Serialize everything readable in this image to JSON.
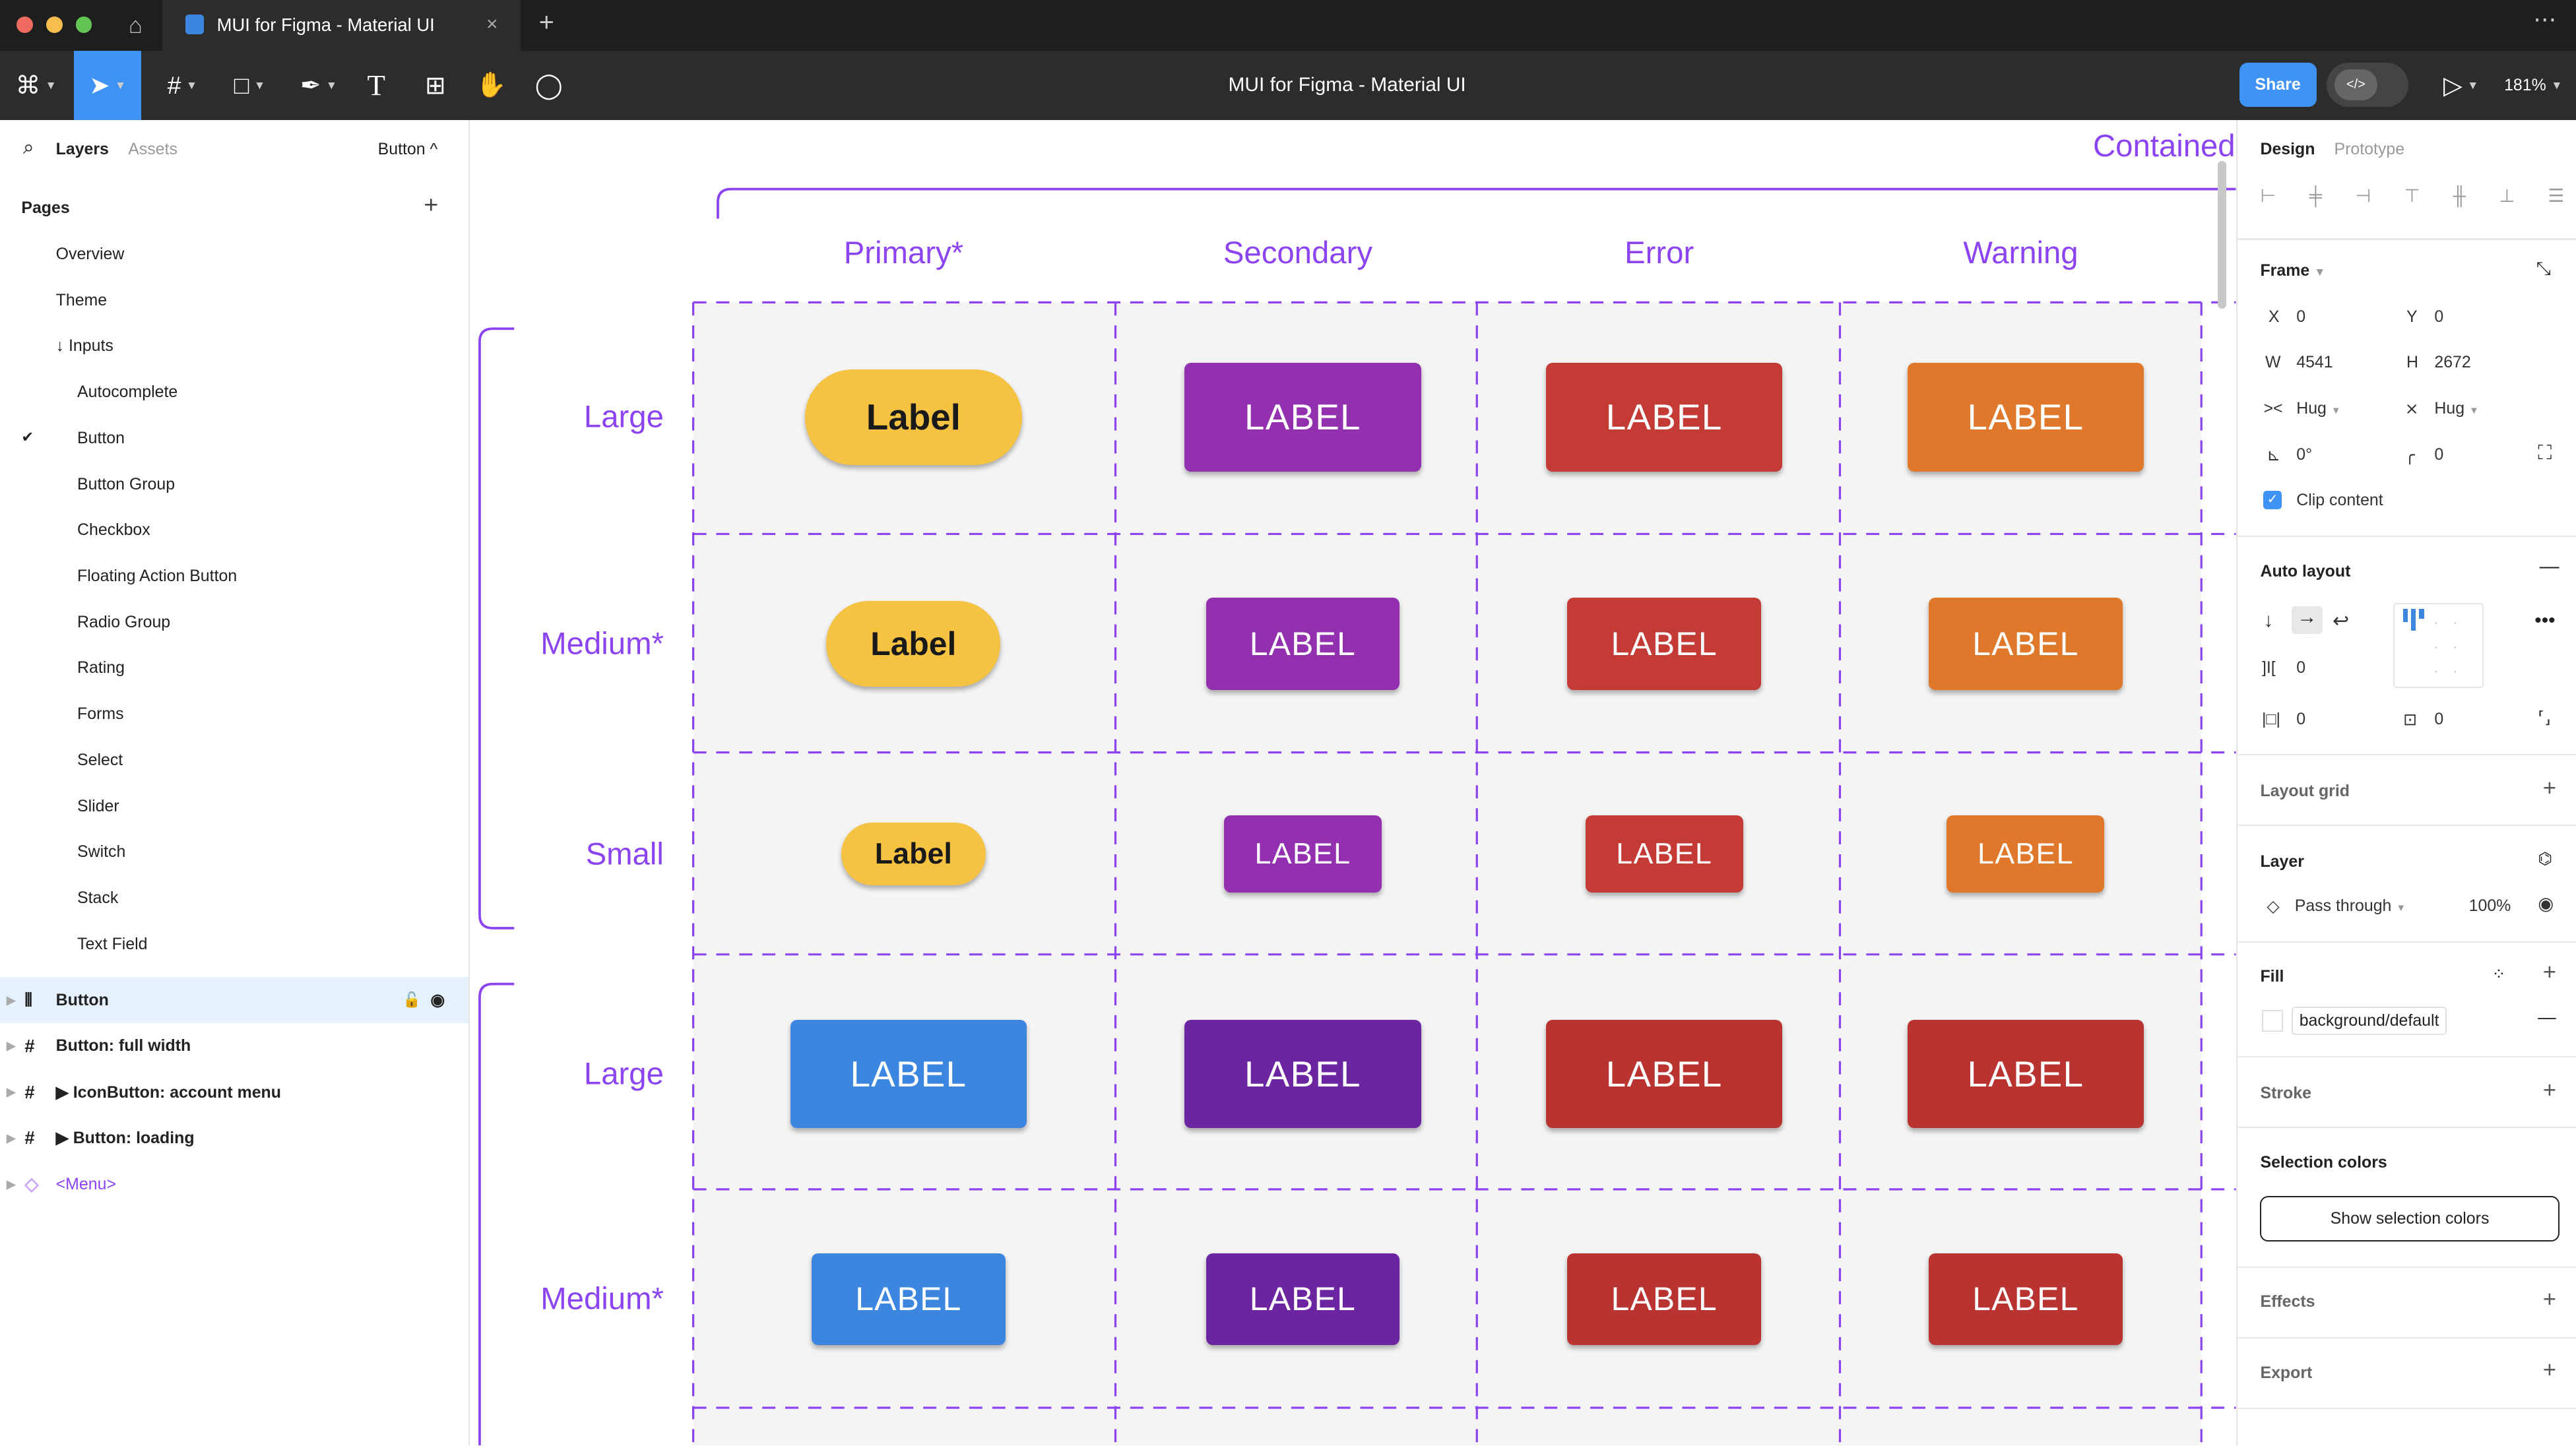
{
  "window": {
    "tab_title": "MUI for Figma - Material UI",
    "doc_title": "MUI for Figma - Material UI",
    "share": "Share",
    "zoom": "181%",
    "code_icon": "</>"
  },
  "left": {
    "tabs": {
      "layers": "Layers",
      "assets": "Assets"
    },
    "page_selector": "Button",
    "pages_title": "Pages",
    "pages": [
      "Overview",
      "Theme",
      "↓ Inputs",
      "Autocomplete",
      "Button",
      "Button Group",
      "Checkbox",
      "Floating Action Button",
      "Radio Group",
      "Rating",
      "Forms",
      "Select",
      "Slider",
      "Switch",
      "Stack",
      "Text Field"
    ],
    "current_page": "Button",
    "layers": [
      {
        "label": "Button",
        "icon": "auto-layout-icon",
        "selected": true
      },
      {
        "label": "Button: full width",
        "icon": "frame-icon"
      },
      {
        "label": "▶ IconButton: account menu",
        "icon": "frame-icon"
      },
      {
        "label": "▶ Button: loading",
        "icon": "frame-icon"
      },
      {
        "label": "<Menu>",
        "icon": "component-icon",
        "accent": "#8b44f0"
      }
    ]
  },
  "right": {
    "tabs": {
      "design": "Design",
      "prototype": "Prototype"
    },
    "frame": {
      "title": "Frame",
      "x_label": "X",
      "x": "0",
      "y_label": "Y",
      "y": "0",
      "w_label": "W",
      "w": "4541",
      "h_label": "H",
      "h": "2672",
      "width_mode": "Hug",
      "height_mode": "Hug",
      "rotation": "0°",
      "radius": "0",
      "clip_content": "Clip content",
      "clip_checked": true
    },
    "auto_layout": {
      "title": "Auto layout",
      "gap": "0",
      "padding_h": "0",
      "padding_v": "0"
    },
    "layout_grid": "Layout grid",
    "layer": {
      "title": "Layer",
      "blend": "Pass through",
      "opacity": "100%"
    },
    "fill": {
      "title": "Fill",
      "style": "background/default"
    },
    "stroke": "Stroke",
    "selection_colors": {
      "title": "Selection colors",
      "button": "Show selection colors"
    },
    "effects": "Effects",
    "export": "Export"
  },
  "canvas": {
    "frame_title": "Contained",
    "columns": [
      "Primary*",
      "Secondary",
      "Error",
      "Warning"
    ],
    "row_labels": [
      "Large",
      "Medium*",
      "Small",
      "Large",
      "Medium*"
    ],
    "accent": "#8b44f0",
    "buttons": [
      [
        {
          "label": "Label",
          "color": "#f5c242",
          "text": "#1a1a1a"
        },
        {
          "label": "LABEL",
          "color": "#9230b0"
        },
        {
          "label": "LABEL",
          "color": "#c43a35"
        },
        {
          "label": "LABEL",
          "color": "#e0782c"
        }
      ],
      [
        {
          "label": "Label",
          "color": "#f5c242",
          "text": "#1a1a1a"
        },
        {
          "label": "LABEL",
          "color": "#9230b0"
        },
        {
          "label": "LABEL",
          "color": "#c43a35"
        },
        {
          "label": "LABEL",
          "color": "#e0782c"
        }
      ],
      [
        {
          "label": "Label",
          "color": "#f5c242",
          "text": "#1a1a1a"
        },
        {
          "label": "LABEL",
          "color": "#9230b0"
        },
        {
          "label": "LABEL",
          "color": "#c43a35"
        },
        {
          "label": "LABEL",
          "color": "#e0782c"
        }
      ],
      [
        {
          "label": "LABEL",
          "color": "#3d86e0"
        },
        {
          "label": "LABEL",
          "color": "#6c25a0"
        },
        {
          "label": "LABEL",
          "color": "#b93431"
        },
        {
          "label": "LABEL",
          "color": "#b93431"
        }
      ],
      [
        {
          "label": "LABEL",
          "color": "#3d86e0"
        },
        {
          "label": "LABEL",
          "color": "#6c25a0"
        },
        {
          "label": "LABEL",
          "color": "#b93431"
        },
        {
          "label": "LABEL",
          "color": "#b93431"
        }
      ]
    ]
  }
}
